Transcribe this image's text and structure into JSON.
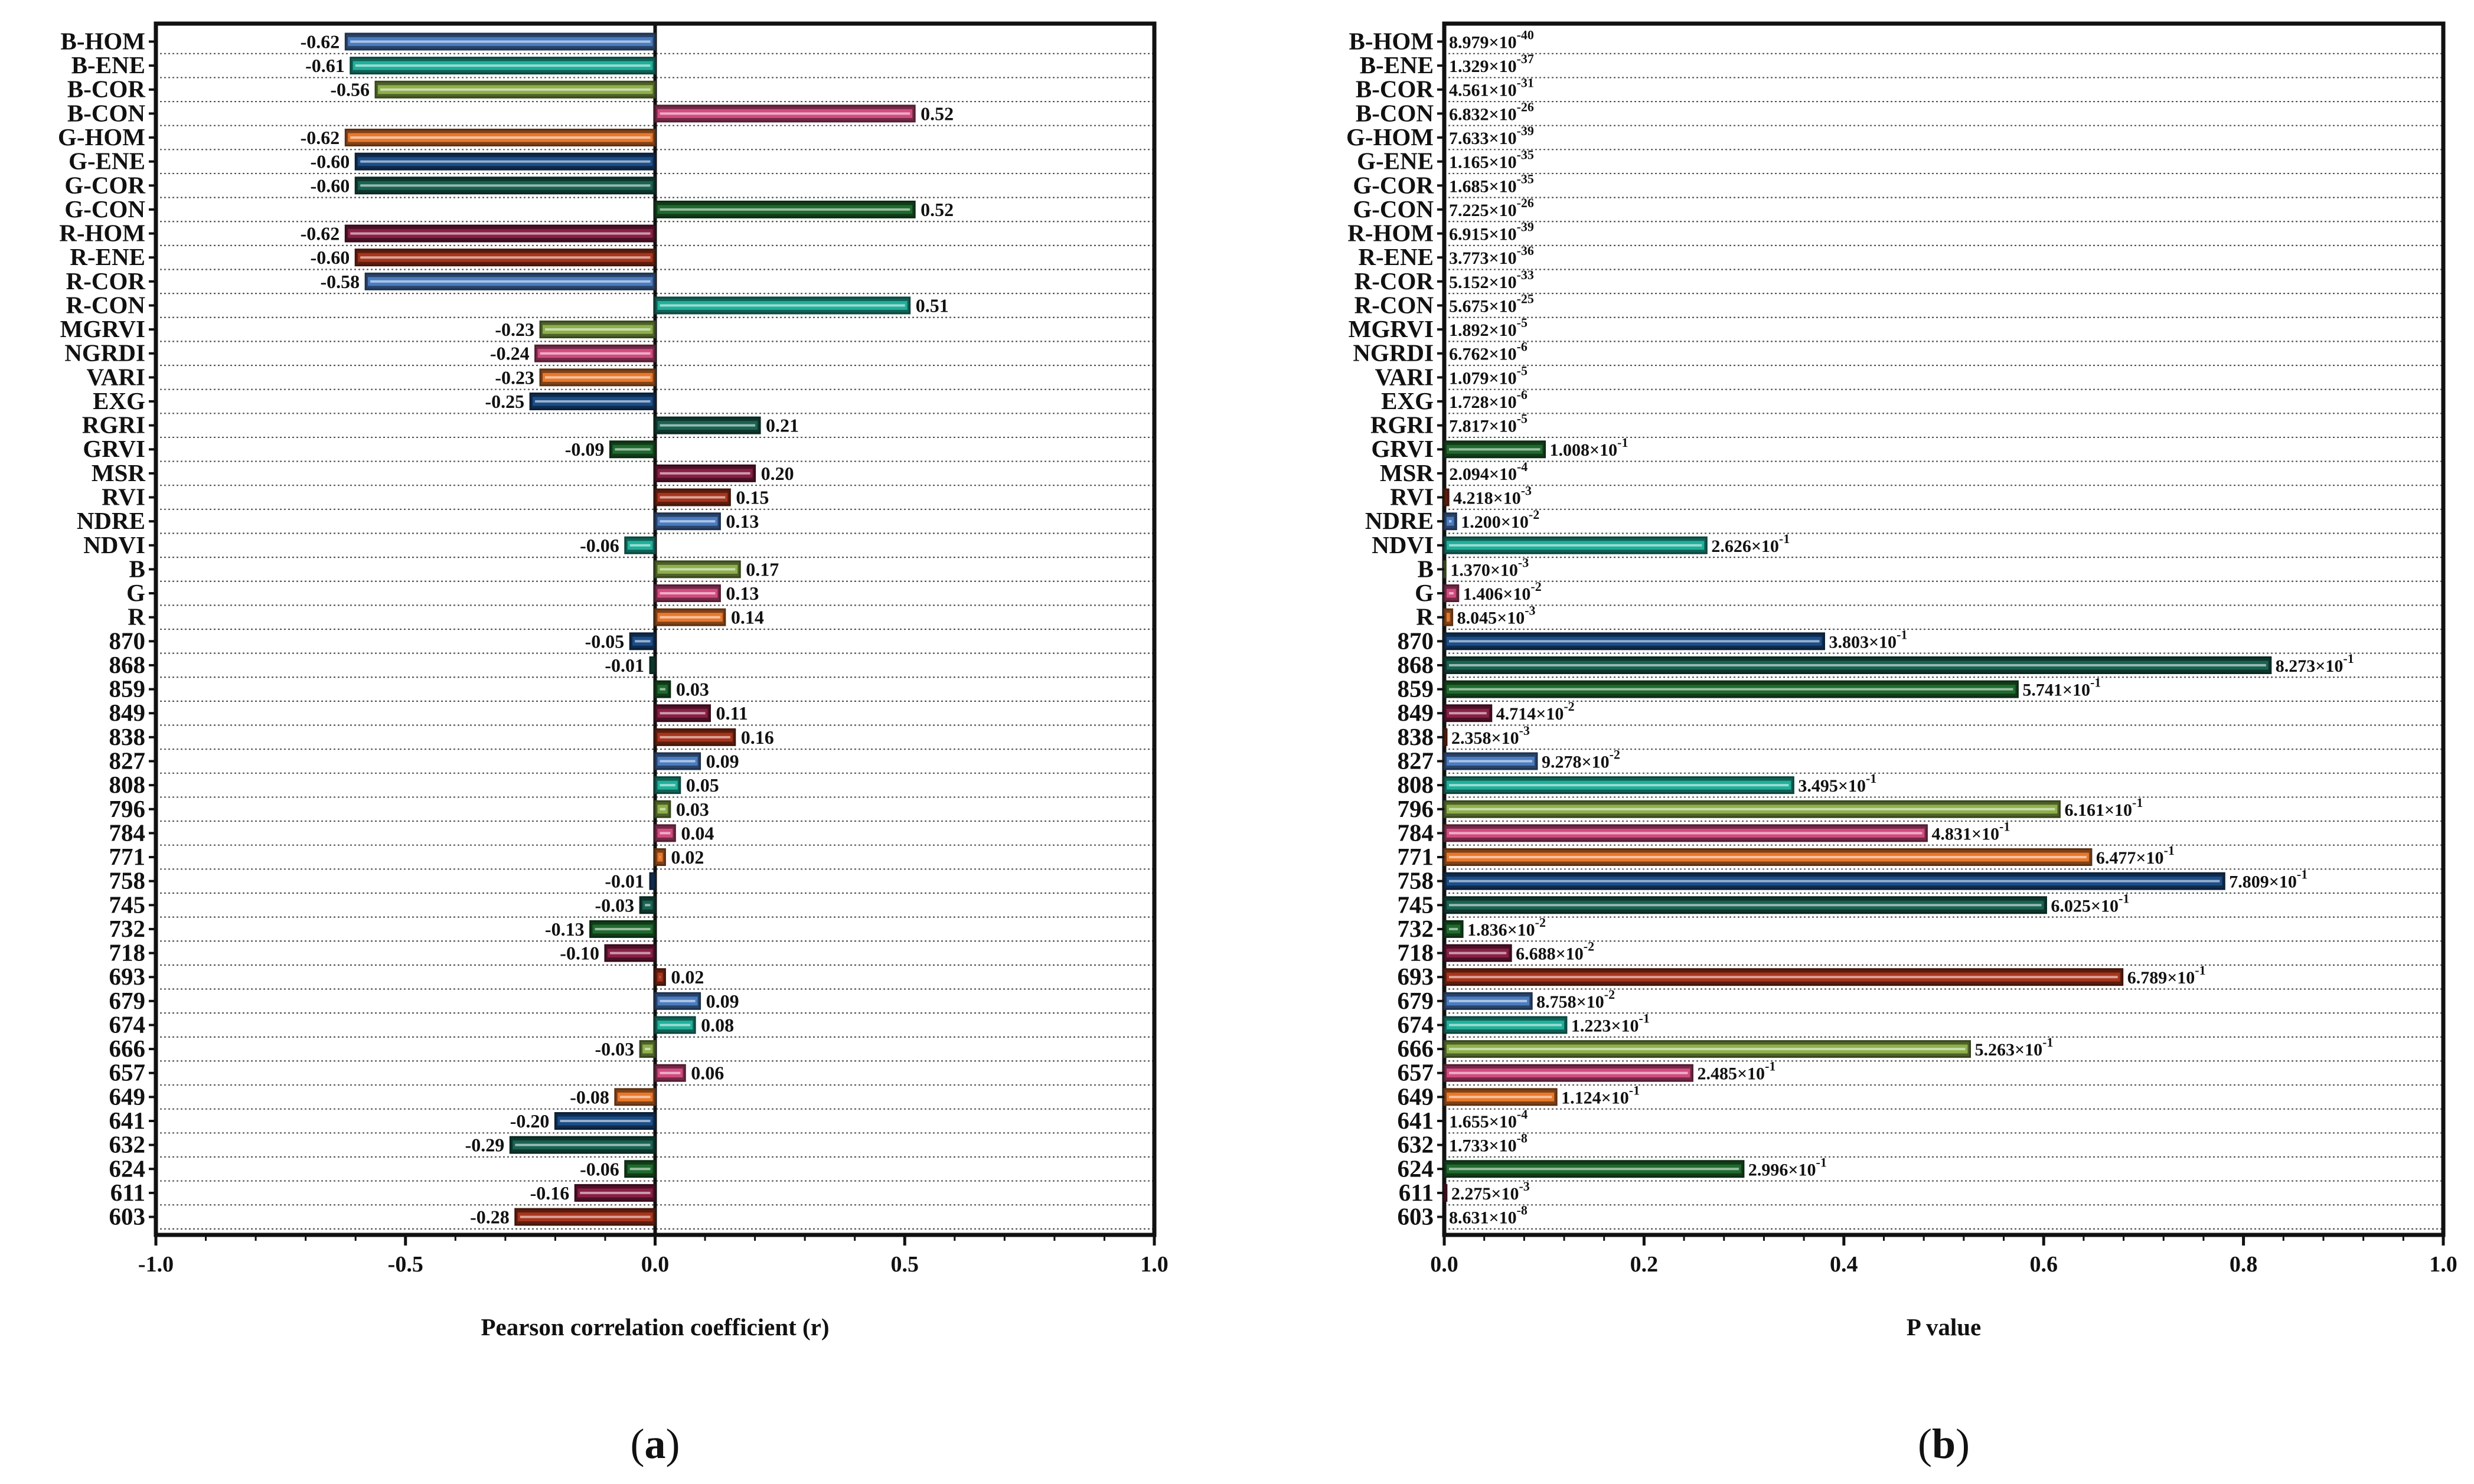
{
  "chart_data": [
    {
      "type": "bar",
      "orientation": "horizontal",
      "panel_label": "a",
      "xlabel": "Pearson correlation coefficient (r)",
      "xlim": [
        -1.0,
        1.0
      ],
      "xticks": [
        "-1.0",
        "-0.5",
        "0.0",
        "0.5",
        "1.0"
      ],
      "xtick_values": [
        -1.0,
        -0.5,
        0.0,
        0.5,
        1.0
      ],
      "categories": [
        "B-HOM",
        "B-ENE",
        "B-COR",
        "B-CON",
        "G-HOM",
        "G-ENE",
        "G-COR",
        "G-CON",
        "R-HOM",
        "R-ENE",
        "R-COR",
        "R-CON",
        "MGRVI",
        "NGRDI",
        "VARI",
        "EXG",
        "RGRI",
        "GRVI",
        "MSR",
        "RVI",
        "NDRE",
        "NDVI",
        "B",
        "G",
        "R",
        "870",
        "868",
        "859",
        "849",
        "838",
        "827",
        "808",
        "796",
        "784",
        "771",
        "758",
        "745",
        "732",
        "718",
        "693",
        "679",
        "674",
        "666",
        "657",
        "649",
        "641",
        "632",
        "624",
        "611",
        "603"
      ],
      "values": [
        -0.62,
        -0.61,
        -0.56,
        0.52,
        -0.62,
        -0.6,
        -0.6,
        0.52,
        -0.62,
        -0.6,
        -0.58,
        0.51,
        -0.23,
        -0.24,
        -0.23,
        -0.25,
        0.21,
        -0.09,
        0.2,
        0.15,
        0.13,
        -0.06,
        0.17,
        0.13,
        0.14,
        -0.05,
        -0.01,
        0.03,
        0.11,
        0.16,
        0.09,
        0.05,
        0.03,
        0.04,
        0.02,
        -0.01,
        -0.03,
        -0.13,
        -0.1,
        0.02,
        0.09,
        0.08,
        -0.03,
        0.06,
        -0.08,
        -0.2,
        -0.29,
        -0.06,
        -0.16,
        -0.28
      ],
      "labels": [
        "-0.62",
        "-0.61",
        "-0.56",
        "0.52",
        "-0.62",
        "-0.60",
        "-0.60",
        "0.52",
        "-0.62",
        "-0.60",
        "-0.58",
        "0.51",
        "-0.23",
        "-0.24",
        "-0.23",
        "-0.25",
        "0.21",
        "-0.09",
        "0.20",
        "0.15",
        "0.13",
        "-0.06",
        "0.17",
        "0.13",
        "0.14",
        "-0.05",
        "-0.01",
        "0.03",
        "0.11",
        "0.16",
        "0.09",
        "0.05",
        "0.03",
        "0.04",
        "0.02",
        "-0.01",
        "-0.03",
        "-0.13",
        "-0.10",
        "0.02",
        "0.09",
        "0.08",
        "-0.03",
        "0.06",
        "-0.08",
        "-0.20",
        "-0.29",
        "-0.06",
        "-0.16",
        "-0.28"
      ]
    },
    {
      "type": "bar",
      "orientation": "horizontal",
      "panel_label": "b",
      "xlabel": "P value",
      "xlim": [
        0.0,
        1.0
      ],
      "xticks": [
        "0.0",
        "0.2",
        "0.4",
        "0.6",
        "0.8",
        "1.0"
      ],
      "xtick_values": [
        0.0,
        0.2,
        0.4,
        0.6,
        0.8,
        1.0
      ],
      "categories": [
        "B-HOM",
        "B-ENE",
        "B-COR",
        "B-CON",
        "G-HOM",
        "G-ENE",
        "G-COR",
        "G-CON",
        "R-HOM",
        "R-ENE",
        "R-COR",
        "R-CON",
        "MGRVI",
        "NGRDI",
        "VARI",
        "EXG",
        "RGRI",
        "GRVI",
        "MSR",
        "RVI",
        "NDRE",
        "NDVI",
        "B",
        "G",
        "R",
        "870",
        "868",
        "859",
        "849",
        "838",
        "827",
        "808",
        "796",
        "784",
        "771",
        "758",
        "745",
        "732",
        "718",
        "693",
        "679",
        "674",
        "666",
        "657",
        "649",
        "641",
        "632",
        "624",
        "611",
        "603"
      ],
      "values": [
        8.979e-40,
        1.329e-37,
        4.561e-31,
        6.832e-26,
        7.633e-39,
        1.165e-35,
        1.685e-35,
        7.225e-26,
        6.915e-39,
        3.773e-36,
        5.152e-33,
        5.675e-25,
        1.892e-05,
        6.762e-06,
        1.079e-05,
        1.728e-06,
        7.817e-05,
        0.1008,
        0.0002094,
        0.004218,
        0.012,
        0.2626,
        0.00137,
        0.01406,
        0.008045,
        0.3803,
        0.8273,
        0.5741,
        0.04714,
        0.002358,
        0.09278,
        0.3495,
        0.6161,
        0.4831,
        0.6477,
        0.7809,
        0.6025,
        0.01836,
        0.06688,
        0.6789,
        0.08758,
        0.1223,
        0.5263,
        0.2485,
        0.1124,
        0.0001655,
        1.733e-08,
        0.2996,
        0.002275,
        8.631e-08
      ],
      "mantissas": [
        "8.979",
        "1.329",
        "4.561",
        "6.832",
        "7.633",
        "1.165",
        "1.685",
        "7.225",
        "6.915",
        "3.773",
        "5.152",
        "5.675",
        "1.892",
        "6.762",
        "1.079",
        "1.728",
        "7.817",
        "1.008",
        "2.094",
        "4.218",
        "1.200",
        "2.626",
        "1.370",
        "1.406",
        "8.045",
        "3.803",
        "8.273",
        "5.741",
        "4.714",
        "2.358",
        "9.278",
        "3.495",
        "6.161",
        "4.831",
        "6.477",
        "7.809",
        "6.025",
        "1.836",
        "6.688",
        "6.789",
        "8.758",
        "1.223",
        "5.263",
        "2.485",
        "1.124",
        "1.655",
        "1.733",
        "2.996",
        "2.275",
        "8.631"
      ],
      "exponents": [
        "-40",
        "-37",
        "-31",
        "-26",
        "-39",
        "-35",
        "-35",
        "-26",
        "-39",
        "-36",
        "-33",
        "-25",
        "-5",
        "-6",
        "-5",
        "-6",
        "-5",
        "-1",
        "-4",
        "-3",
        "-2",
        "-1",
        "-3",
        "-2",
        "-3",
        "-1",
        "-1",
        "-1",
        "-2",
        "-3",
        "-2",
        "-1",
        "-1",
        "-1",
        "-1",
        "-1",
        "-1",
        "-2",
        "-2",
        "-1",
        "-2",
        "-1",
        "-1",
        "-1",
        "-1",
        "-4",
        "-8",
        "-1",
        "-3",
        "-8"
      ],
      "times_base": "×10"
    }
  ],
  "colors": {
    "palette": [
      "#4a7cc0",
      "#1fb09a",
      "#8db04a",
      "#d24b80",
      "#e8782c",
      "#1b4e8a",
      "#196352",
      "#1f6b2e",
      "#8a1f45",
      "#a8341c"
    ],
    "mapping": [
      0,
      1,
      2,
      3,
      4,
      5,
      6,
      7,
      8,
      9,
      0,
      1,
      2,
      3,
      4,
      5,
      6,
      7,
      8,
      9,
      0,
      1,
      2,
      3,
      4,
      5,
      6,
      7,
      8,
      9,
      0,
      1,
      2,
      3,
      4,
      5,
      6,
      7,
      8,
      9,
      0,
      1,
      2,
      3,
      4,
      5,
      6,
      7,
      8,
      9
    ],
    "axis": "#111111",
    "grid": "#555555"
  }
}
